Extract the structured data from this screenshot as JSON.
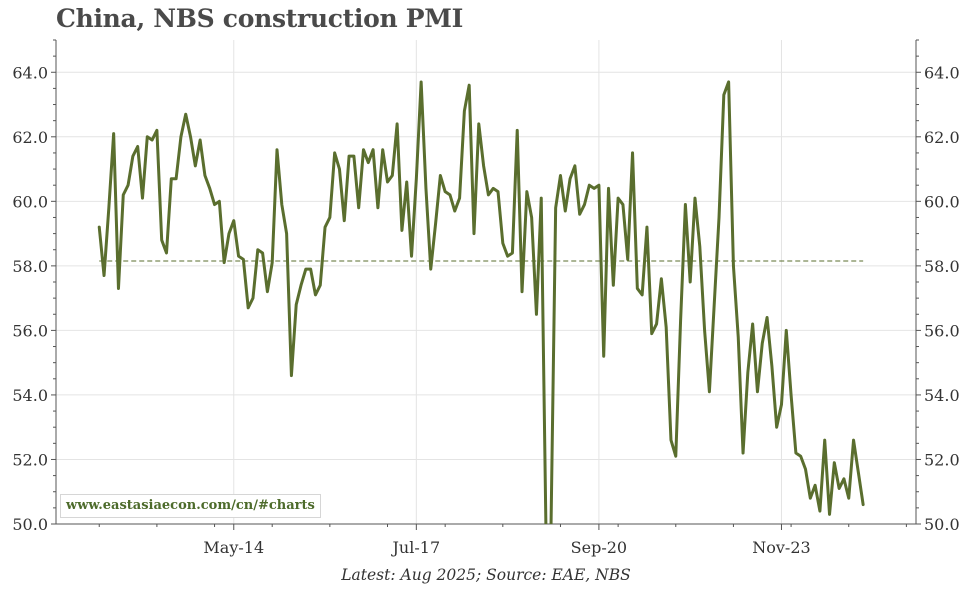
{
  "title": "China, NBS construction PMI",
  "source_note": "Latest: Aug 2025; Source: EAE, NBS",
  "watermark": "www.eastasiaecon.com/cn/#charts",
  "colors": {
    "series": "#5a6e2e",
    "reference": "#5a6e2e",
    "grid": "#e4e4e4",
    "axis": "#555555"
  },
  "chart_data": {
    "type": "line",
    "title": "China, NBS construction PMI",
    "xlabel": "",
    "ylabel": "",
    "ylim": [
      50,
      65
    ],
    "yticks": [
      50,
      52,
      54,
      56,
      58,
      60,
      62,
      64
    ],
    "ytick_labels": [
      "50.0",
      "52.0",
      "54.0",
      "56.0",
      "58.0",
      "60.0",
      "62.0",
      "64.0"
    ],
    "xticks": [
      "2014-05",
      "2017-07",
      "2020-09",
      "2023-11"
    ],
    "xtick_labels": [
      "May-14",
      "Jul-17",
      "Sep-20",
      "Nov-23"
    ],
    "xlim": [
      "2011-04",
      "2026-03"
    ],
    "grid": true,
    "reference_line": {
      "value": 58.15,
      "style": "dashed"
    },
    "series": [
      {
        "start": "2012-01",
        "values": [
          59.2,
          57.7,
          59.8,
          62.1,
          57.3,
          60.2,
          60.5,
          61.4,
          61.7,
          60.1,
          62.0,
          61.9,
          62.2,
          58.8,
          58.4,
          60.7,
          60.7,
          62.0,
          62.7,
          62.0,
          61.1,
          61.9,
          60.8,
          60.4,
          59.9,
          60.0,
          58.1,
          59.0,
          59.4,
          58.3,
          58.2,
          56.7,
          57.0,
          58.5,
          58.4,
          57.2,
          58.1,
          61.6,
          59.9,
          59.0,
          54.6,
          56.8,
          57.4,
          57.9,
          57.9,
          57.1,
          57.4,
          59.2,
          59.5,
          61.5,
          61.0,
          59.4,
          61.4,
          61.4,
          59.8,
          61.6,
          61.2,
          61.6,
          59.8,
          61.6,
          60.6,
          60.8,
          62.4,
          59.1,
          60.6,
          58.3,
          60.7,
          63.7,
          60.4,
          57.9,
          59.3,
          60.8,
          60.3,
          60.2,
          59.7,
          60.1,
          62.8,
          63.6,
          59.0,
          62.4,
          61.1,
          60.2,
          60.4,
          60.3,
          58.7,
          58.3,
          58.4,
          62.2,
          57.2,
          60.3,
          59.5,
          56.5,
          60.1,
          49.6,
          49.6,
          59.8,
          60.8,
          59.7,
          60.7,
          61.1,
          59.6,
          59.9,
          60.5,
          60.4,
          60.5,
          55.2,
          60.4,
          57.4,
          60.1,
          59.9,
          58.2,
          61.5,
          57.3,
          57.1,
          59.2,
          55.9,
          56.2,
          57.6,
          56.1,
          52.6,
          52.1,
          56.3,
          59.9,
          57.5,
          60.1,
          58.6,
          56.0,
          54.1,
          56.8,
          59.5,
          63.3,
          63.7,
          58.0,
          55.8,
          52.2,
          54.7,
          56.2,
          54.1,
          55.6,
          56.4,
          54.9,
          53.0,
          53.7,
          56.0,
          54.0,
          52.2,
          52.1,
          51.7,
          50.8,
          51.2,
          50.4,
          52.6,
          50.3,
          51.9,
          51.1,
          51.4,
          50.8,
          52.6,
          51.6,
          50.6
        ]
      }
    ]
  }
}
